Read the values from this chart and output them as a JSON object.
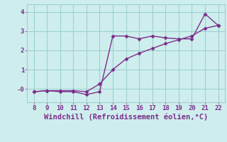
{
  "x": [
    8,
    9,
    10,
    11,
    12,
    13,
    14,
    15,
    16,
    17,
    18,
    19,
    20,
    21,
    22
  ],
  "y_jagged": [
    -0.15,
    -0.1,
    -0.15,
    -0.15,
    -0.3,
    -0.15,
    2.75,
    2.75,
    2.6,
    2.75,
    2.65,
    2.6,
    2.6,
    3.9,
    3.3
  ],
  "y_smooth": [
    -0.15,
    -0.1,
    -0.1,
    -0.1,
    -0.15,
    0.25,
    1.0,
    1.55,
    1.85,
    2.1,
    2.35,
    2.55,
    2.75,
    3.15,
    3.3
  ],
  "color": "#7b2d8b",
  "bg_color": "#ceeeed",
  "grid_color": "#9dcfcf",
  "xlabel": "Windchill (Refroidissement éolien,°C)",
  "xlabel_color": "#7b2d8b",
  "xlabel_fontsize": 7.5,
  "tick_color": "#7b2d8b",
  "xlim": [
    7.5,
    22.5
  ],
  "ylim": [
    -0.7,
    4.4
  ],
  "xticks": [
    8,
    9,
    10,
    11,
    12,
    13,
    14,
    15,
    16,
    17,
    18,
    19,
    20,
    21,
    22
  ],
  "yticks": [
    0,
    1,
    2,
    3,
    4
  ],
  "ytick_labels": [
    "-0",
    "1",
    "2",
    "3",
    "4"
  ],
  "line_width": 1.0,
  "marker": "D",
  "marker_size": 2.5
}
